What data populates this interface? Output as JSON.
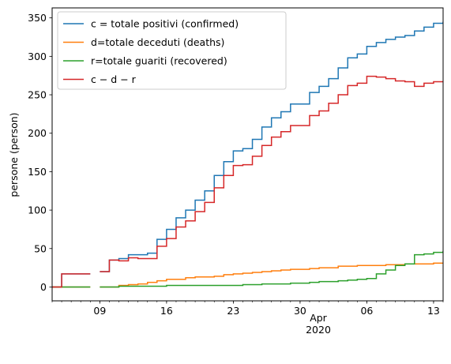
{
  "chart_data": {
    "type": "line",
    "drawstyle": "steps-post",
    "ylabel": "persone (person)",
    "xlabel_lines": [
      "Apr",
      "2020"
    ],
    "x_range": [
      "2020-03-04",
      "2020-04-14"
    ],
    "ylim": [
      -18,
      363
    ],
    "y_ticks": [
      0,
      50,
      100,
      150,
      200,
      250,
      300,
      350
    ],
    "x_ticks": [
      {
        "date": "2020-03-09",
        "label": "09"
      },
      {
        "date": "2020-03-16",
        "label": "16"
      },
      {
        "date": "2020-03-23",
        "label": "23"
      },
      {
        "date": "2020-03-30",
        "label": "30"
      },
      {
        "date": "2020-04-06",
        "label": "06"
      },
      {
        "date": "2020-04-13",
        "label": "13"
      }
    ],
    "grid": false,
    "legend_position": "top-left",
    "x": [
      "2020-03-04",
      "2020-03-05",
      "2020-03-06",
      "2020-03-07",
      "2020-03-08",
      "2020-03-09",
      "2020-03-10",
      "2020-03-11",
      "2020-03-12",
      "2020-03-13",
      "2020-03-14",
      "2020-03-15",
      "2020-03-16",
      "2020-03-17",
      "2020-03-18",
      "2020-03-19",
      "2020-03-20",
      "2020-03-21",
      "2020-03-22",
      "2020-03-23",
      "2020-03-24",
      "2020-03-25",
      "2020-03-26",
      "2020-03-27",
      "2020-03-28",
      "2020-03-29",
      "2020-03-30",
      "2020-03-31",
      "2020-04-01",
      "2020-04-02",
      "2020-04-03",
      "2020-04-04",
      "2020-04-05",
      "2020-04-06",
      "2020-04-07",
      "2020-04-08",
      "2020-04-09",
      "2020-04-10",
      "2020-04-11",
      "2020-04-12",
      "2020-04-13",
      "2020-04-14"
    ],
    "series": [
      {
        "name": "c = totale positivi (confirmed)",
        "color": "#1f77b4",
        "values": [
          0,
          17,
          17,
          17,
          null,
          20,
          35,
          37,
          42,
          42,
          44,
          62,
          75,
          90,
          100,
          113,
          125,
          145,
          163,
          177,
          180,
          192,
          208,
          220,
          228,
          238,
          238,
          253,
          261,
          271,
          285,
          298,
          303,
          313,
          318,
          322,
          325,
          327,
          333,
          338,
          343,
          345
        ]
      },
      {
        "name": "d=totale deceduti (deaths)",
        "color": "#ff7f0e",
        "values": [
          0,
          0,
          0,
          0,
          null,
          0,
          0,
          2,
          3,
          4,
          6,
          8,
          10,
          10,
          12,
          13,
          13,
          14,
          16,
          17,
          18,
          19,
          20,
          21,
          22,
          23,
          23,
          24,
          25,
          25,
          27,
          27,
          28,
          28,
          28,
          29,
          29,
          30,
          30,
          30,
          31,
          31
        ]
      },
      {
        "name": "r=totale guariti (recovered)",
        "color": "#2ca02c",
        "values": [
          0,
          0,
          0,
          0,
          null,
          0,
          0,
          1,
          1,
          1,
          1,
          1,
          2,
          2,
          2,
          2,
          2,
          2,
          2,
          2,
          3,
          3,
          4,
          4,
          4,
          5,
          5,
          6,
          7,
          7,
          8,
          9,
          10,
          11,
          17,
          22,
          28,
          30,
          42,
          43,
          45,
          47
        ]
      },
      {
        "name": "c − d − r",
        "color": "#d62728",
        "values": [
          0,
          17,
          17,
          17,
          null,
          20,
          35,
          34,
          38,
          37,
          37,
          53,
          63,
          78,
          86,
          98,
          110,
          129,
          145,
          158,
          159,
          170,
          184,
          195,
          202,
          210,
          210,
          223,
          229,
          239,
          250,
          262,
          265,
          274,
          273,
          271,
          268,
          267,
          261,
          265,
          267,
          267
        ]
      }
    ]
  }
}
